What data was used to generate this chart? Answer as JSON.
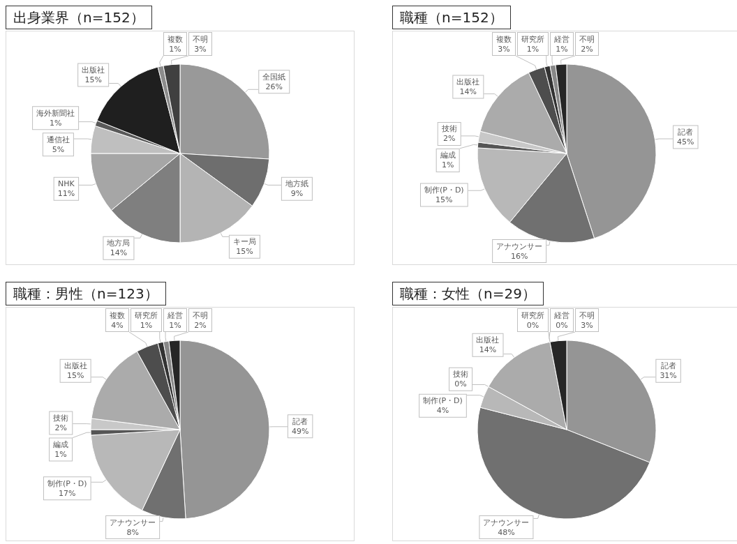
{
  "chart_data": [
    {
      "type": "pie",
      "title": "出身業界（n=152）",
      "categories": [
        "全国紙",
        "地方紙",
        "キー局",
        "地方局",
        "NHK",
        "通信社",
        "海外新聞社",
        "出版社",
        "複数",
        "不明"
      ],
      "values": [
        26,
        9,
        15,
        14,
        11,
        5,
        1,
        15,
        1,
        3
      ],
      "value_labels": [
        "26%",
        "9%",
        "15%",
        "14%",
        "11%",
        "5%",
        "1%",
        "15%",
        "1%",
        "3%"
      ],
      "colors": [
        "#999999",
        "#6e6e6e",
        "#b4b4b4",
        "#7f7f7f",
        "#a6a6a6",
        "#bfbfbf",
        "#595959",
        "#1f1f1f",
        "#8c8c8c",
        "#404040"
      ]
    },
    {
      "type": "pie",
      "title": "職種（n=152）",
      "categories": [
        "記者",
        "アナウンサー",
        "制作(P・D)",
        "編成",
        "技術",
        "出版社",
        "複数",
        "研究所",
        "経営",
        "不明"
      ],
      "values": [
        45,
        16,
        15,
        1,
        2,
        14,
        3,
        1,
        1,
        2
      ],
      "value_labels": [
        "45%",
        "16%",
        "15%",
        "1%",
        "2%",
        "14%",
        "3%",
        "1%",
        "1%",
        "2%"
      ],
      "colors": [
        "#959595",
        "#707070",
        "#b8b8b8",
        "#555555",
        "#c8c8c8",
        "#ababab",
        "#4d4d4d",
        "#333333",
        "#888888",
        "#262626"
      ]
    },
    {
      "type": "pie",
      "title": "職種：男性（n=123）",
      "categories": [
        "記者",
        "アナウンサー",
        "制作(P・D)",
        "編成",
        "技術",
        "出版社",
        "複数",
        "研究所",
        "経営",
        "不明"
      ],
      "values": [
        49,
        8,
        17,
        1,
        2,
        15,
        4,
        1,
        1,
        2
      ],
      "value_labels": [
        "49%",
        "8%",
        "17%",
        "1%",
        "2%",
        "15%",
        "4%",
        "1%",
        "1%",
        "2%"
      ],
      "colors": [
        "#959595",
        "#707070",
        "#b8b8b8",
        "#555555",
        "#c8c8c8",
        "#ababab",
        "#4d4d4d",
        "#333333",
        "#888888",
        "#262626"
      ]
    },
    {
      "type": "pie",
      "title": "職種：女性（n=29）",
      "categories": [
        "記者",
        "アナウンサー",
        "制作(P・D)",
        "技術",
        "出版社",
        "研究所",
        "経営",
        "不明"
      ],
      "values": [
        31,
        48,
        4,
        0,
        14,
        0,
        0,
        3
      ],
      "value_labels": [
        "31%",
        "48%",
        "4%",
        "0%",
        "14%",
        "0%",
        "0%",
        "3%"
      ],
      "colors": [
        "#959595",
        "#707070",
        "#b8b8b8",
        "#c8c8c8",
        "#ababab",
        "#333333",
        "#888888",
        "#262626"
      ]
    }
  ]
}
